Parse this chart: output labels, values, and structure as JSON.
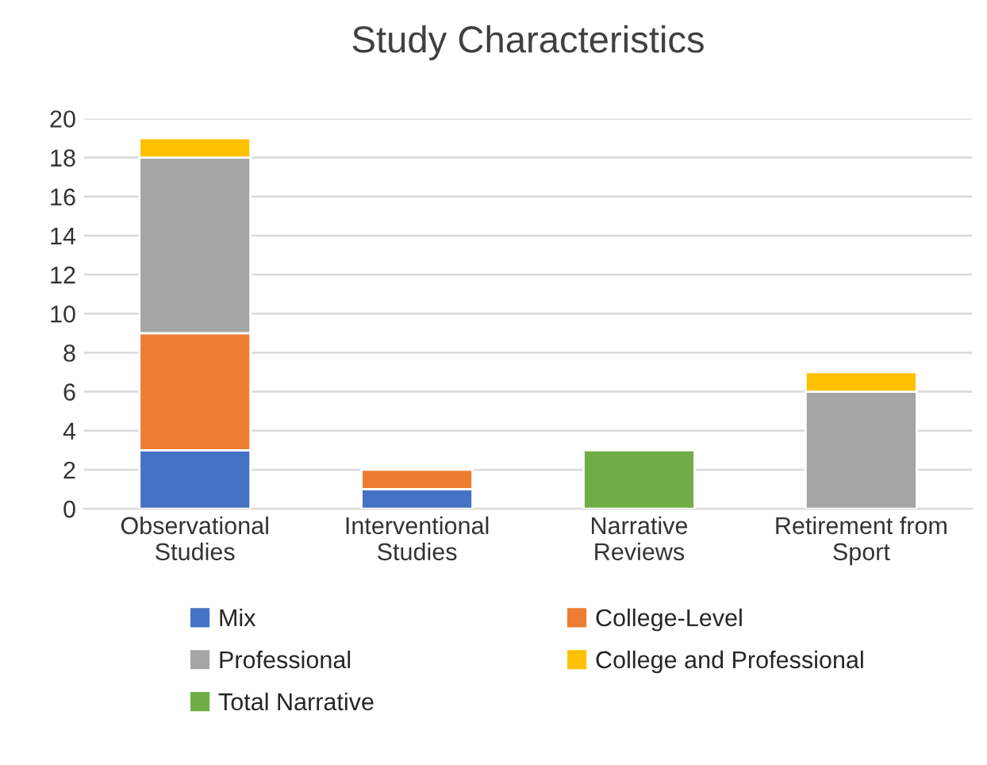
{
  "chart_data": {
    "type": "bar",
    "title": "Study Characteristics",
    "stacked": true,
    "categories": [
      "Observational Studies",
      "Interventional Studies",
      "Narrative Reviews",
      "Retirement from Sport"
    ],
    "series": [
      {
        "name": "Mix",
        "color": "#4472c4",
        "values": [
          3,
          1,
          null,
          null
        ]
      },
      {
        "name": "College-Level",
        "color": "#ed7d31",
        "values": [
          6,
          1,
          null,
          null
        ]
      },
      {
        "name": "Professional",
        "color": "#a5a5a5",
        "values": [
          9,
          null,
          null,
          6
        ]
      },
      {
        "name": "College and Professional",
        "color": "#ffc000",
        "values": [
          1,
          null,
          null,
          1
        ]
      },
      {
        "name": "Total Narrative",
        "color": "#70ad47",
        "values": [
          null,
          null,
          3,
          null
        ]
      }
    ],
    "ylim": [
      0,
      20
    ],
    "yticks": [
      0,
      2,
      4,
      6,
      8,
      10,
      12,
      14,
      16,
      18,
      20
    ],
    "grid": "y",
    "legend": "bottom"
  }
}
